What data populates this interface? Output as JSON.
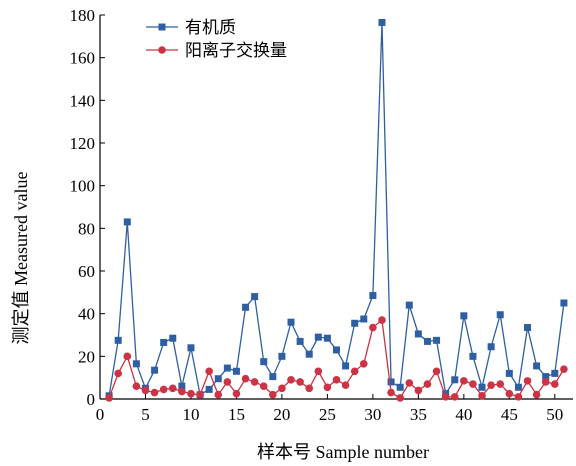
{
  "chart_data": {
    "type": "line",
    "xlabel": "样本号 Sample number",
    "ylabel": "测定值 Measured value",
    "xlim": [
      0,
      52
    ],
    "ylim": [
      0,
      180
    ],
    "x_ticks": [
      0,
      5,
      10,
      15,
      20,
      25,
      30,
      35,
      40,
      45,
      50
    ],
    "y_ticks": [
      0,
      20,
      40,
      60,
      80,
      100,
      120,
      140,
      160,
      180
    ],
    "grid": false,
    "legend_position": "top-left",
    "x": [
      1,
      2,
      3,
      4,
      5,
      6,
      7,
      8,
      9,
      10,
      11,
      12,
      13,
      14,
      15,
      16,
      17,
      18,
      19,
      20,
      21,
      22,
      23,
      24,
      25,
      26,
      27,
      28,
      29,
      30,
      31,
      32,
      33,
      34,
      35,
      36,
      37,
      38,
      39,
      40,
      41,
      42,
      43,
      44,
      45,
      46,
      47,
      48,
      49,
      50,
      51
    ],
    "series": [
      {
        "name": "有机质",
        "color": "#2f5fa3",
        "marker": "square",
        "values": [
          1.5,
          27.5,
          83,
          16.5,
          5,
          13.5,
          26.5,
          28.5,
          6,
          24,
          2,
          4.5,
          9.5,
          14.5,
          13,
          43,
          48,
          17.5,
          10.5,
          20,
          36,
          27,
          21,
          29,
          28.5,
          23,
          15.5,
          35.5,
          37.5,
          48.5,
          176.5,
          8,
          5.5,
          44,
          30.5,
          27,
          27.5,
          2.5,
          9,
          39,
          20,
          5.5,
          24.5,
          39.5,
          12,
          5.5,
          33.5,
          15.5,
          10.5,
          12,
          45
        ]
      },
      {
        "name": "阳离子交换量",
        "color": "#cc3344",
        "marker": "circle",
        "values": [
          0.5,
          12,
          20,
          6,
          4,
          3,
          4.5,
          5,
          3.5,
          2.5,
          2,
          13,
          2,
          8,
          2.5,
          9.5,
          8,
          6,
          2,
          5,
          9,
          8,
          5,
          13,
          5.5,
          9,
          6.5,
          13,
          16.5,
          33.5,
          37,
          3,
          0.5,
          7.5,
          4,
          7,
          13,
          1,
          1,
          8.5,
          7,
          1.5,
          6.5,
          7,
          2.5,
          1,
          8.5,
          2,
          8,
          7,
          14
        ]
      }
    ]
  }
}
